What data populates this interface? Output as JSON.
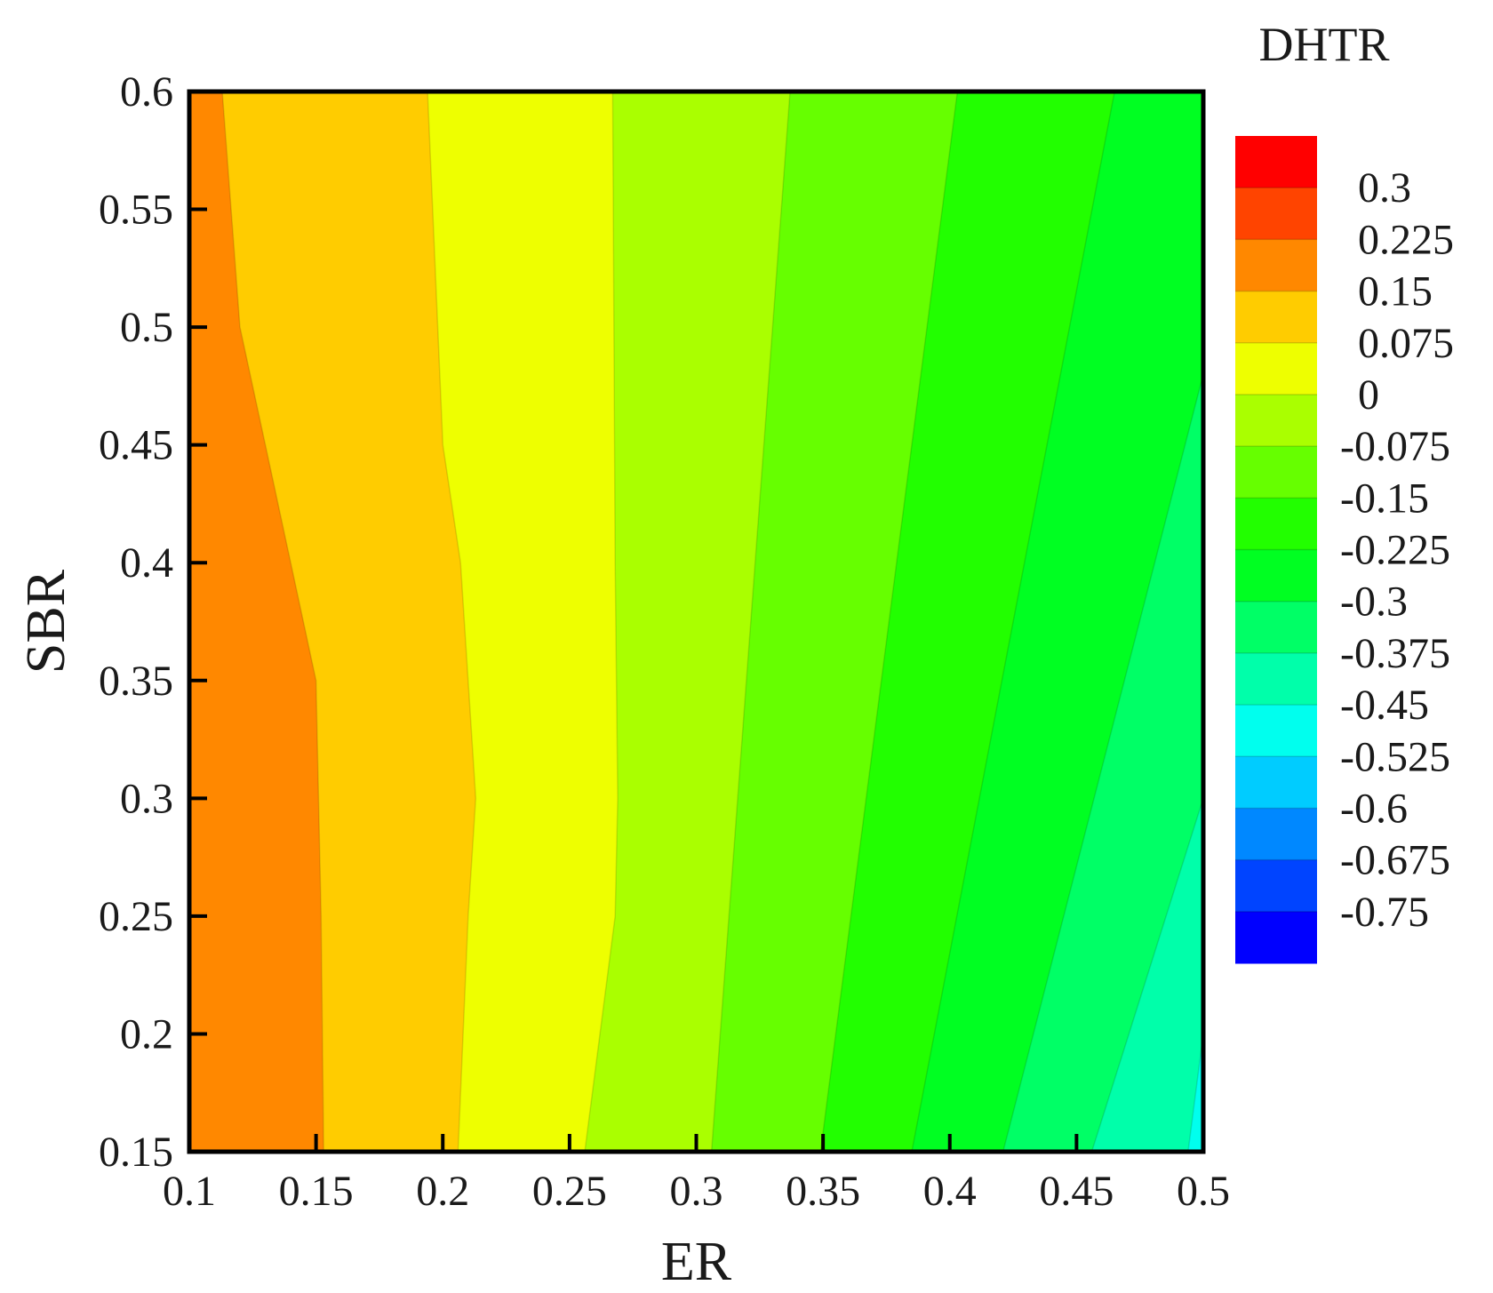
{
  "chart_data": {
    "type": "heatmap",
    "subtype": "filled-contour",
    "xlabel": "ER",
    "ylabel": "SBR",
    "xlim": [
      0.1,
      0.5
    ],
    "ylim": [
      0.15,
      0.6
    ],
    "x_ticks": [
      "0.1",
      "0.15",
      "0.2",
      "0.25",
      "0.3",
      "0.35",
      "0.4",
      "0.45",
      "0.5"
    ],
    "y_ticks": [
      "0.15",
      "0.2",
      "0.25",
      "0.3",
      "0.35",
      "0.4",
      "0.45",
      "0.5",
      "0.55",
      "0.6"
    ],
    "legend": {
      "title": "DHTR",
      "placement": "right",
      "labels": [
        "0.3",
        "0.225",
        "0.15",
        "0.075",
        "0",
        "-0.075",
        "-0.15",
        "-0.225",
        "-0.3",
        "-0.375",
        "-0.45",
        "-0.525",
        "-0.6",
        "-0.675",
        "-0.75"
      ],
      "colors": [
        "#ff0000",
        "#ff4400",
        "#ff8800",
        "#ffcc00",
        "#eeff00",
        "#aaff00",
        "#66ff00",
        "#22ff00",
        "#00ff22",
        "#00ff66",
        "#00ffaa",
        "#00ffee",
        "#00ccff",
        "#0088ff",
        "#0044ff",
        "#0000ff"
      ]
    },
    "contour_bands": [
      {
        "color": "#ff8800",
        "range": "0.15 to 0.225",
        "right_boundary": [
          [
            0.113,
            0.6
          ],
          [
            0.12,
            0.5
          ],
          [
            0.13,
            0.45
          ],
          [
            0.14,
            0.4
          ],
          [
            0.15,
            0.35
          ],
          [
            0.152,
            0.25
          ],
          [
            0.153,
            0.15
          ]
        ]
      },
      {
        "color": "#ffcc00",
        "range": "0.075 to 0.15",
        "right_boundary": [
          [
            0.194,
            0.6
          ],
          [
            0.2,
            0.45
          ],
          [
            0.207,
            0.4
          ],
          [
            0.213,
            0.3
          ],
          [
            0.21,
            0.25
          ],
          [
            0.206,
            0.15
          ]
        ]
      },
      {
        "color": "#eeff00",
        "range": "0 to 0.075",
        "right_boundary": [
          [
            0.267,
            0.6
          ],
          [
            0.268,
            0.4
          ],
          [
            0.269,
            0.3
          ],
          [
            0.268,
            0.25
          ],
          [
            0.256,
            0.15
          ]
        ]
      },
      {
        "color": "#aaff00",
        "range": "-0.075 to 0",
        "right_boundary": [
          [
            0.337,
            0.6
          ],
          [
            0.306,
            0.15
          ]
        ]
      },
      {
        "color": "#66ff00",
        "range": "-0.15 to -0.075",
        "right_boundary": [
          [
            0.403,
            0.6
          ],
          [
            0.349,
            0.15
          ]
        ]
      },
      {
        "color": "#22ff00",
        "range": "-0.225 to -0.15",
        "right_boundary": [
          [
            0.465,
            0.6
          ],
          [
            0.385,
            0.15
          ]
        ]
      },
      {
        "color": "#00ff22",
        "range": "-0.3 to -0.225",
        "right_boundary": [
          [
            0.5,
            0.6
          ],
          [
            0.5,
            0.6
          ]
        ]
      },
      {
        "color": "#00ff66",
        "range": "-0.375 to -0.3",
        "left_boundary": [
          [
            0.5,
            0.48
          ],
          [
            0.421,
            0.15
          ]
        ]
      },
      {
        "color": "#00ffaa",
        "range": "-0.45 to -0.375",
        "left_boundary": [
          [
            0.5,
            0.3
          ],
          [
            0.456,
            0.15
          ]
        ]
      },
      {
        "color": "#00ffee",
        "range": "-0.525 to -0.45",
        "left_boundary": [
          [
            0.5,
            0.2
          ],
          [
            0.494,
            0.15
          ]
        ]
      }
    ],
    "grid": false
  }
}
